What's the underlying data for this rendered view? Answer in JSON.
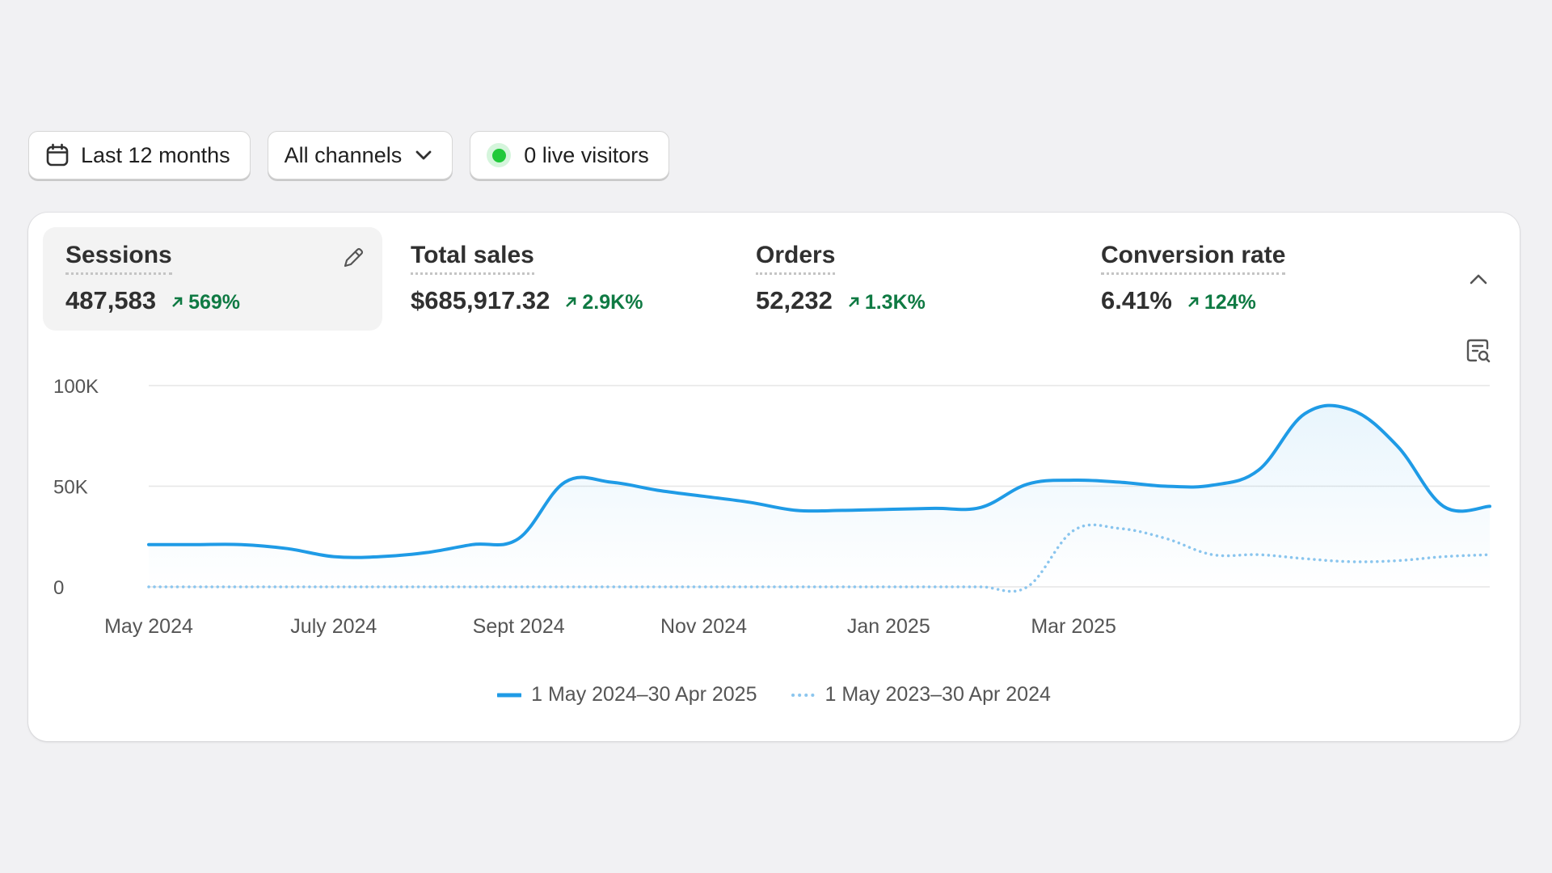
{
  "toolbar": {
    "date_range": "Last 12 months",
    "channels": "All channels",
    "live_visitors": "0 live visitors"
  },
  "metrics": [
    {
      "label": "Sessions",
      "value": "487,583",
      "delta": "569%"
    },
    {
      "label": "Total sales",
      "value": "$685,917.32",
      "delta": "2.9K%"
    },
    {
      "label": "Orders",
      "value": "52,232",
      "delta": "1.3K%"
    },
    {
      "label": "Conversion rate",
      "value": "6.41%",
      "delta": "124%"
    }
  ],
  "colors": {
    "accent": "#1f9be6",
    "comparison": "#8cc6ee",
    "positive": "#0f7a43",
    "live": "#21c93a"
  },
  "chart_data": {
    "type": "line",
    "y_ticks": [
      "100K",
      "50K",
      "0"
    ],
    "ylim": [
      0,
      100000
    ],
    "x_tick_labels": [
      "May 2024",
      "July 2024",
      "Sept 2024",
      "Nov 2024",
      "Jan 2025",
      "Mar 2025"
    ],
    "x_tick_index": [
      0,
      4,
      8,
      12,
      16,
      20
    ],
    "series": [
      {
        "name": "1 May 2024–30 Apr 2025",
        "style": "solid",
        "values": [
          21000,
          21000,
          21000,
          19000,
          15000,
          15000,
          17000,
          21000,
          24000,
          52000,
          52000,
          48000,
          45000,
          42000,
          38000,
          38000,
          38500,
          39000,
          39500,
          51000,
          53000,
          52000,
          50000,
          50500,
          58000,
          86000,
          88000,
          70000,
          40000,
          40000
        ]
      },
      {
        "name": "1 May 2023–30 Apr 2024",
        "style": "dotted",
        "values": [
          0,
          0,
          0,
          0,
          0,
          0,
          0,
          0,
          0,
          0,
          0,
          0,
          0,
          0,
          0,
          0,
          0,
          0,
          0,
          0,
          28000,
          29000,
          24000,
          16000,
          16000,
          14000,
          12500,
          13000,
          15000,
          16000
        ]
      }
    ],
    "x_count": 30,
    "grid": true,
    "legend_position": "bottom-center"
  }
}
